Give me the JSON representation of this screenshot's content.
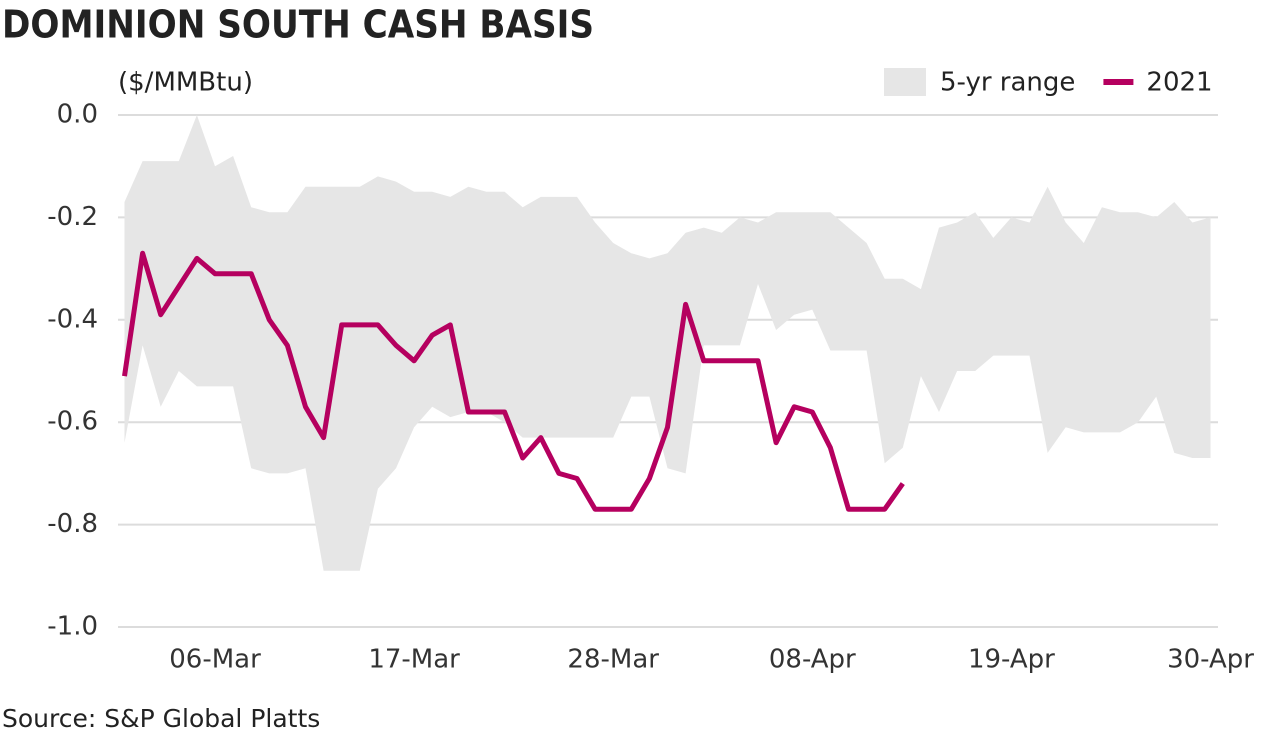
{
  "chart_data": {
    "type": "line",
    "title": "DOMINION SOUTH CASH BASIS",
    "y_label": "($/MMBtu)",
    "source": "Source: S&P Global Platts",
    "categories": [
      null,
      null,
      null,
      null,
      null,
      "06-Mar",
      null,
      null,
      null,
      null,
      null,
      null,
      null,
      null,
      null,
      null,
      "17-Mar",
      null,
      null,
      null,
      null,
      null,
      null,
      null,
      null,
      null,
      null,
      "28-Mar",
      null,
      null,
      null,
      null,
      null,
      null,
      null,
      null,
      null,
      null,
      "08-Apr",
      null,
      null,
      null,
      null,
      null,
      null,
      null,
      null,
      null,
      null,
      "19-Apr",
      null,
      null,
      null,
      null,
      null,
      null,
      null,
      null,
      null,
      null,
      "30-Apr"
    ],
    "series": [
      {
        "name": "5-yr range",
        "type": "range",
        "color": "#e6e6e6",
        "high": [
          -0.17,
          -0.09,
          -0.09,
          -0.09,
          0.0,
          -0.1,
          -0.08,
          -0.18,
          -0.19,
          -0.19,
          -0.14,
          -0.14,
          -0.14,
          -0.14,
          -0.12,
          -0.13,
          -0.15,
          -0.15,
          -0.16,
          -0.14,
          -0.15,
          -0.15,
          -0.18,
          -0.16,
          -0.16,
          -0.16,
          -0.21,
          -0.25,
          -0.27,
          -0.28,
          -0.27,
          -0.23,
          -0.22,
          -0.23,
          -0.2,
          -0.21,
          -0.19,
          -0.19,
          -0.19,
          -0.19,
          -0.22,
          -0.25,
          -0.32,
          -0.32,
          -0.34,
          -0.22,
          -0.21,
          -0.19,
          -0.24,
          -0.2,
          -0.21,
          -0.14,
          -0.21,
          -0.25,
          -0.18,
          -0.19,
          -0.19,
          -0.2,
          -0.17,
          -0.21,
          -0.2
        ],
        "low": [
          -0.64,
          -0.45,
          -0.57,
          -0.5,
          -0.53,
          -0.53,
          -0.53,
          -0.69,
          -0.7,
          -0.7,
          -0.69,
          -0.89,
          -0.89,
          -0.89,
          -0.73,
          -0.69,
          -0.61,
          -0.57,
          -0.59,
          -0.58,
          -0.58,
          -0.6,
          -0.63,
          -0.63,
          -0.63,
          -0.63,
          -0.63,
          -0.63,
          -0.55,
          -0.55,
          -0.69,
          -0.7,
          -0.45,
          -0.45,
          -0.45,
          -0.33,
          -0.42,
          -0.39,
          -0.38,
          -0.46,
          -0.46,
          -0.46,
          -0.68,
          -0.65,
          -0.51,
          -0.58,
          -0.5,
          -0.5,
          -0.47,
          -0.47,
          -0.47,
          -0.66,
          -0.61,
          -0.62,
          -0.62,
          -0.62,
          -0.6,
          -0.55,
          -0.66,
          -0.67,
          -0.67
        ]
      },
      {
        "name": "2021",
        "color": "#b5005f",
        "values": [
          -0.51,
          -0.27,
          -0.39,
          -0.335,
          -0.28,
          -0.31,
          -0.31,
          -0.31,
          -0.4,
          -0.45,
          -0.57,
          -0.63,
          -0.41,
          -0.41,
          -0.41,
          -0.45,
          -0.48,
          -0.43,
          -0.41,
          -0.58,
          -0.58,
          -0.58,
          -0.67,
          -0.63,
          -0.7,
          -0.71,
          -0.77,
          -0.77,
          -0.77,
          -0.71,
          -0.61,
          -0.37,
          -0.48,
          -0.48,
          -0.48,
          -0.48,
          -0.64,
          -0.57,
          -0.58,
          -0.65,
          -0.77,
          -0.77,
          -0.77,
          -0.72,
          null,
          null,
          null,
          null,
          null,
          null,
          null,
          null,
          null,
          null,
          null,
          null,
          null,
          null,
          null,
          null,
          null
        ]
      }
    ],
    "ylim": [
      -1,
      0
    ],
    "yticks": [
      {
        "value": 0,
        "label": "0.0"
      },
      -0.2,
      -0.4,
      -0.6,
      -0.8,
      {
        "value": -1,
        "label": "-1.0"
      }
    ],
    "grid": true,
    "legend": "top-right"
  }
}
